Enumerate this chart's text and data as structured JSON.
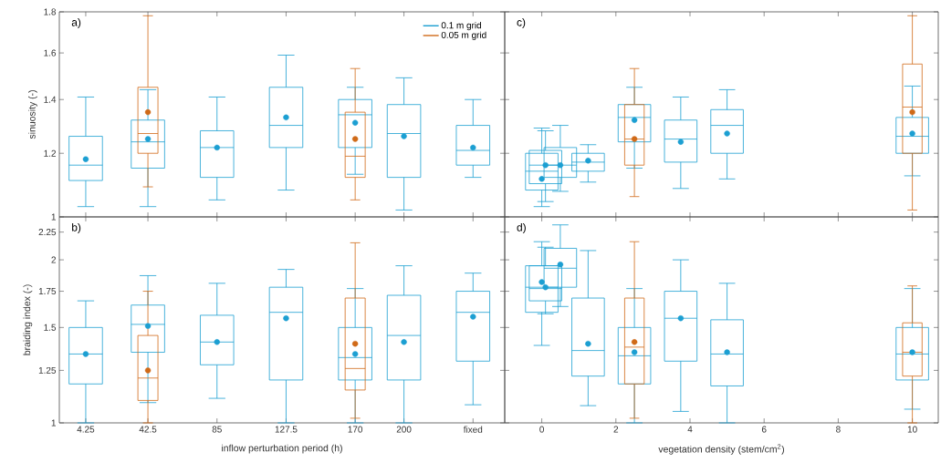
{
  "chart_data": [
    {
      "type": "box",
      "annotations": [
        "a)"
      ],
      "ylabel": "sinuosity (-)",
      "log": true,
      "legend": "top right",
      "tick_labels": "y",
      "xlim": [
        -12,
        262
      ],
      "xticks": [
        4.25,
        42.5,
        85,
        127.5,
        170,
        200,
        {
          "value": 242.5,
          "label": null
        }
      ],
      "ylim": [
        1,
        1.8
      ],
      "yticks": [
        1,
        1.2,
        1.4,
        1.6,
        1.8
      ],
      "series": [
        {
          "name": "0.1 m grid",
          "color": "#1c9fd2",
          "x": [
            4.25,
            42.5,
            85,
            127.5,
            170,
            200,
            242.5
          ],
          "boxes": [
            {
              "low": 1.03,
              "q1": 1.11,
              "median": 1.16,
              "q3": 1.26,
              "high": 1.41,
              "mean": 1.18
            },
            {
              "low": 1.03,
              "q1": 1.15,
              "median": 1.24,
              "q3": 1.32,
              "high": 1.44,
              "mean": 1.25
            },
            {
              "low": 1.05,
              "q1": 1.12,
              "median": 1.22,
              "q3": 1.28,
              "high": 1.41,
              "mean": 1.22
            },
            {
              "low": 1.08,
              "q1": 1.22,
              "median": 1.3,
              "q3": 1.45,
              "high": 1.59,
              "mean": 1.33
            },
            {
              "low": 1.13,
              "q1": 1.22,
              "median": 1.34,
              "q3": 1.4,
              "high": 1.45,
              "mean": 1.31
            },
            {
              "low": 1.02,
              "q1": 1.12,
              "median": 1.27,
              "q3": 1.38,
              "high": 1.49,
              "mean": 1.26
            },
            {
              "low": 1.12,
              "q1": 1.16,
              "median": 1.21,
              "q3": 1.3,
              "high": 1.4,
              "mean": 1.22
            }
          ]
        },
        {
          "name": "0.05 m grid",
          "color": "#d06a18",
          "x": [
            42.5,
            170
          ],
          "boxes": [
            {
              "low": 1.09,
              "q1": 1.2,
              "median": 1.27,
              "q3": 1.45,
              "high": 1.78,
              "mean": 1.35
            },
            {
              "low": 1.05,
              "q1": 1.12,
              "median": 1.19,
              "q3": 1.35,
              "high": 1.53,
              "mean": 1.25
            }
          ]
        }
      ]
    },
    {
      "type": "box",
      "annotations": [
        "b)"
      ],
      "xlabel": "inflow perturbation period (h)",
      "ylabel": "braiding index (-)",
      "log": true,
      "xlim": [
        -12,
        262
      ],
      "xticks": [
        4.25,
        42.5,
        85,
        127.5,
        170,
        200,
        {
          "value": 242.5,
          "label": "fixed"
        }
      ],
      "ylim": [
        1,
        2.4
      ],
      "yticks": [
        1,
        1.25,
        1.5,
        1.75,
        2,
        2.25
      ],
      "series": [
        {
          "color": "#1c9fd2",
          "x": [
            4.25,
            42.5,
            85,
            127.5,
            170,
            200,
            242.5
          ],
          "boxes": [
            {
              "low": 1.0,
              "q1": 1.18,
              "median": 1.34,
              "q3": 1.5,
              "high": 1.68,
              "mean": 1.34
            },
            {
              "low": 1.09,
              "q1": 1.35,
              "median": 1.52,
              "q3": 1.65,
              "high": 1.87,
              "mean": 1.51
            },
            {
              "low": 1.11,
              "q1": 1.28,
              "median": 1.41,
              "q3": 1.58,
              "high": 1.81,
              "mean": 1.41
            },
            {
              "low": 1.0,
              "q1": 1.2,
              "median": 1.6,
              "q3": 1.78,
              "high": 1.92,
              "mean": 1.56
            },
            {
              "low": 1.0,
              "q1": 1.2,
              "median": 1.32,
              "q3": 1.5,
              "high": 1.77,
              "mean": 1.34
            },
            {
              "low": 1.0,
              "q1": 1.2,
              "median": 1.45,
              "q3": 1.72,
              "high": 1.95,
              "mean": 1.41
            },
            {
              "low": 1.08,
              "q1": 1.3,
              "median": 1.6,
              "q3": 1.75,
              "high": 1.89,
              "mean": 1.57
            }
          ]
        },
        {
          "color": "#d06a18",
          "x": [
            42.5,
            170
          ],
          "boxes": [
            {
              "low": 1.0,
              "q1": 1.1,
              "median": 1.21,
              "q3": 1.45,
              "high": 1.75,
              "mean": 1.25
            },
            {
              "low": 1.02,
              "q1": 1.15,
              "median": 1.26,
              "q3": 1.7,
              "high": 2.15,
              "mean": 1.4
            }
          ]
        }
      ]
    },
    {
      "type": "box",
      "annotations": [
        "c)"
      ],
      "log": true,
      "tick_labels": false,
      "xlim": [
        -1,
        10.7
      ],
      "xticks": [
        0,
        2,
        4,
        6,
        8,
        10
      ],
      "ylim": [
        1,
        1.8
      ],
      "yticks": [
        1,
        1.2,
        1.4,
        1.6,
        1.8
      ],
      "series": [
        {
          "color": "#1c9fd2",
          "x": [
            0,
            0.1,
            0.5,
            1.25,
            2.5,
            3.75,
            5,
            10
          ],
          "boxes": [
            {
              "low": 1.03,
              "q1": 1.08,
              "median": 1.14,
              "q3": 1.2,
              "high": 1.29,
              "mean": 1.115
            },
            {
              "low": 1.045,
              "q1": 1.1,
              "median": 1.16,
              "q3": 1.21,
              "high": 1.28,
              "mean": 1.16
            },
            {
              "low": 1.076,
              "q1": 1.12,
              "median": 1.16,
              "q3": 1.22,
              "high": 1.3,
              "mean": 1.16
            },
            {
              "low": 1.105,
              "q1": 1.14,
              "median": 1.17,
              "q3": 1.2,
              "high": 1.23,
              "mean": 1.175
            },
            {
              "low": 1.15,
              "q1": 1.24,
              "median": 1.33,
              "q3": 1.38,
              "high": 1.45,
              "mean": 1.32
            },
            {
              "low": 1.085,
              "q1": 1.17,
              "median": 1.25,
              "q3": 1.32,
              "high": 1.41,
              "mean": 1.24
            },
            {
              "low": 1.115,
              "q1": 1.2,
              "median": 1.3,
              "q3": 1.36,
              "high": 1.44,
              "mean": 1.27
            },
            {
              "low": 1.125,
              "q1": 1.2,
              "median": 1.26,
              "q3": 1.33,
              "high": 1.455,
              "mean": 1.27
            }
          ]
        },
        {
          "color": "#d06a18",
          "x": [
            2.5,
            10
          ],
          "boxes": [
            {
              "low": 1.06,
              "q1": 1.16,
              "median": 1.25,
              "q3": 1.38,
              "high": 1.53,
              "mean": 1.25
            },
            {
              "low": 1.02,
              "q1": 1.2,
              "median": 1.37,
              "q3": 1.55,
              "high": 1.78,
              "mean": 1.35
            }
          ]
        }
      ]
    },
    {
      "type": "box",
      "annotations": [
        "d)"
      ],
      "xlabel": "vegetation density (stem/cm$^{2}$)",
      "log": true,
      "tick_labels": "x",
      "xlim": [
        -1,
        10.7
      ],
      "xticks": [
        0,
        2,
        4,
        6,
        8,
        10
      ],
      "ylim": [
        1,
        2.4
      ],
      "yticks": [
        1,
        1.25,
        1.5,
        1.75,
        2,
        2.25
      ],
      "series": [
        {
          "color": "#1c9fd2",
          "x": [
            0,
            0.1,
            0.5,
            1.25,
            2.5,
            3.75,
            5,
            10
          ],
          "boxes": [
            {
              "low": 1.39,
              "q1": 1.6,
              "median": 1.78,
              "q3": 1.95,
              "high": 2.16,
              "mean": 1.82
            },
            {
              "low": 1.59,
              "q1": 1.68,
              "median": 1.77,
              "q3": 1.95,
              "high": 2.11,
              "mean": 1.78
            },
            {
              "low": 1.64,
              "q1": 1.78,
              "median": 1.93,
              "q3": 2.1,
              "high": 2.32,
              "mean": 1.96
            },
            {
              "low": 1.076,
              "q1": 1.22,
              "median": 1.36,
              "q3": 1.7,
              "high": 2.08,
              "mean": 1.4
            },
            {
              "low": 1.0,
              "q1": 1.18,
              "median": 1.33,
              "q3": 1.5,
              "high": 1.77,
              "mean": 1.35
            },
            {
              "low": 1.05,
              "q1": 1.3,
              "median": 1.56,
              "q3": 1.75,
              "high": 2.0,
              "mean": 1.56
            },
            {
              "low": 1.0,
              "q1": 1.17,
              "median": 1.34,
              "q3": 1.55,
              "high": 1.81,
              "mean": 1.35
            },
            {
              "low": 1.06,
              "q1": 1.2,
              "median": 1.34,
              "q3": 1.5,
              "high": 1.77,
              "mean": 1.35
            }
          ]
        },
        {
          "color": "#d06a18",
          "x": [
            2.5,
            10
          ],
          "boxes": [
            {
              "low": 1.02,
              "q1": 1.18,
              "median": 1.38,
              "q3": 1.7,
              "high": 2.16,
              "mean": 1.41
            },
            {
              "low": 1.0,
              "q1": 1.22,
              "median": 1.35,
              "q3": 1.53,
              "high": 1.79
            }
          ]
        }
      ]
    }
  ]
}
